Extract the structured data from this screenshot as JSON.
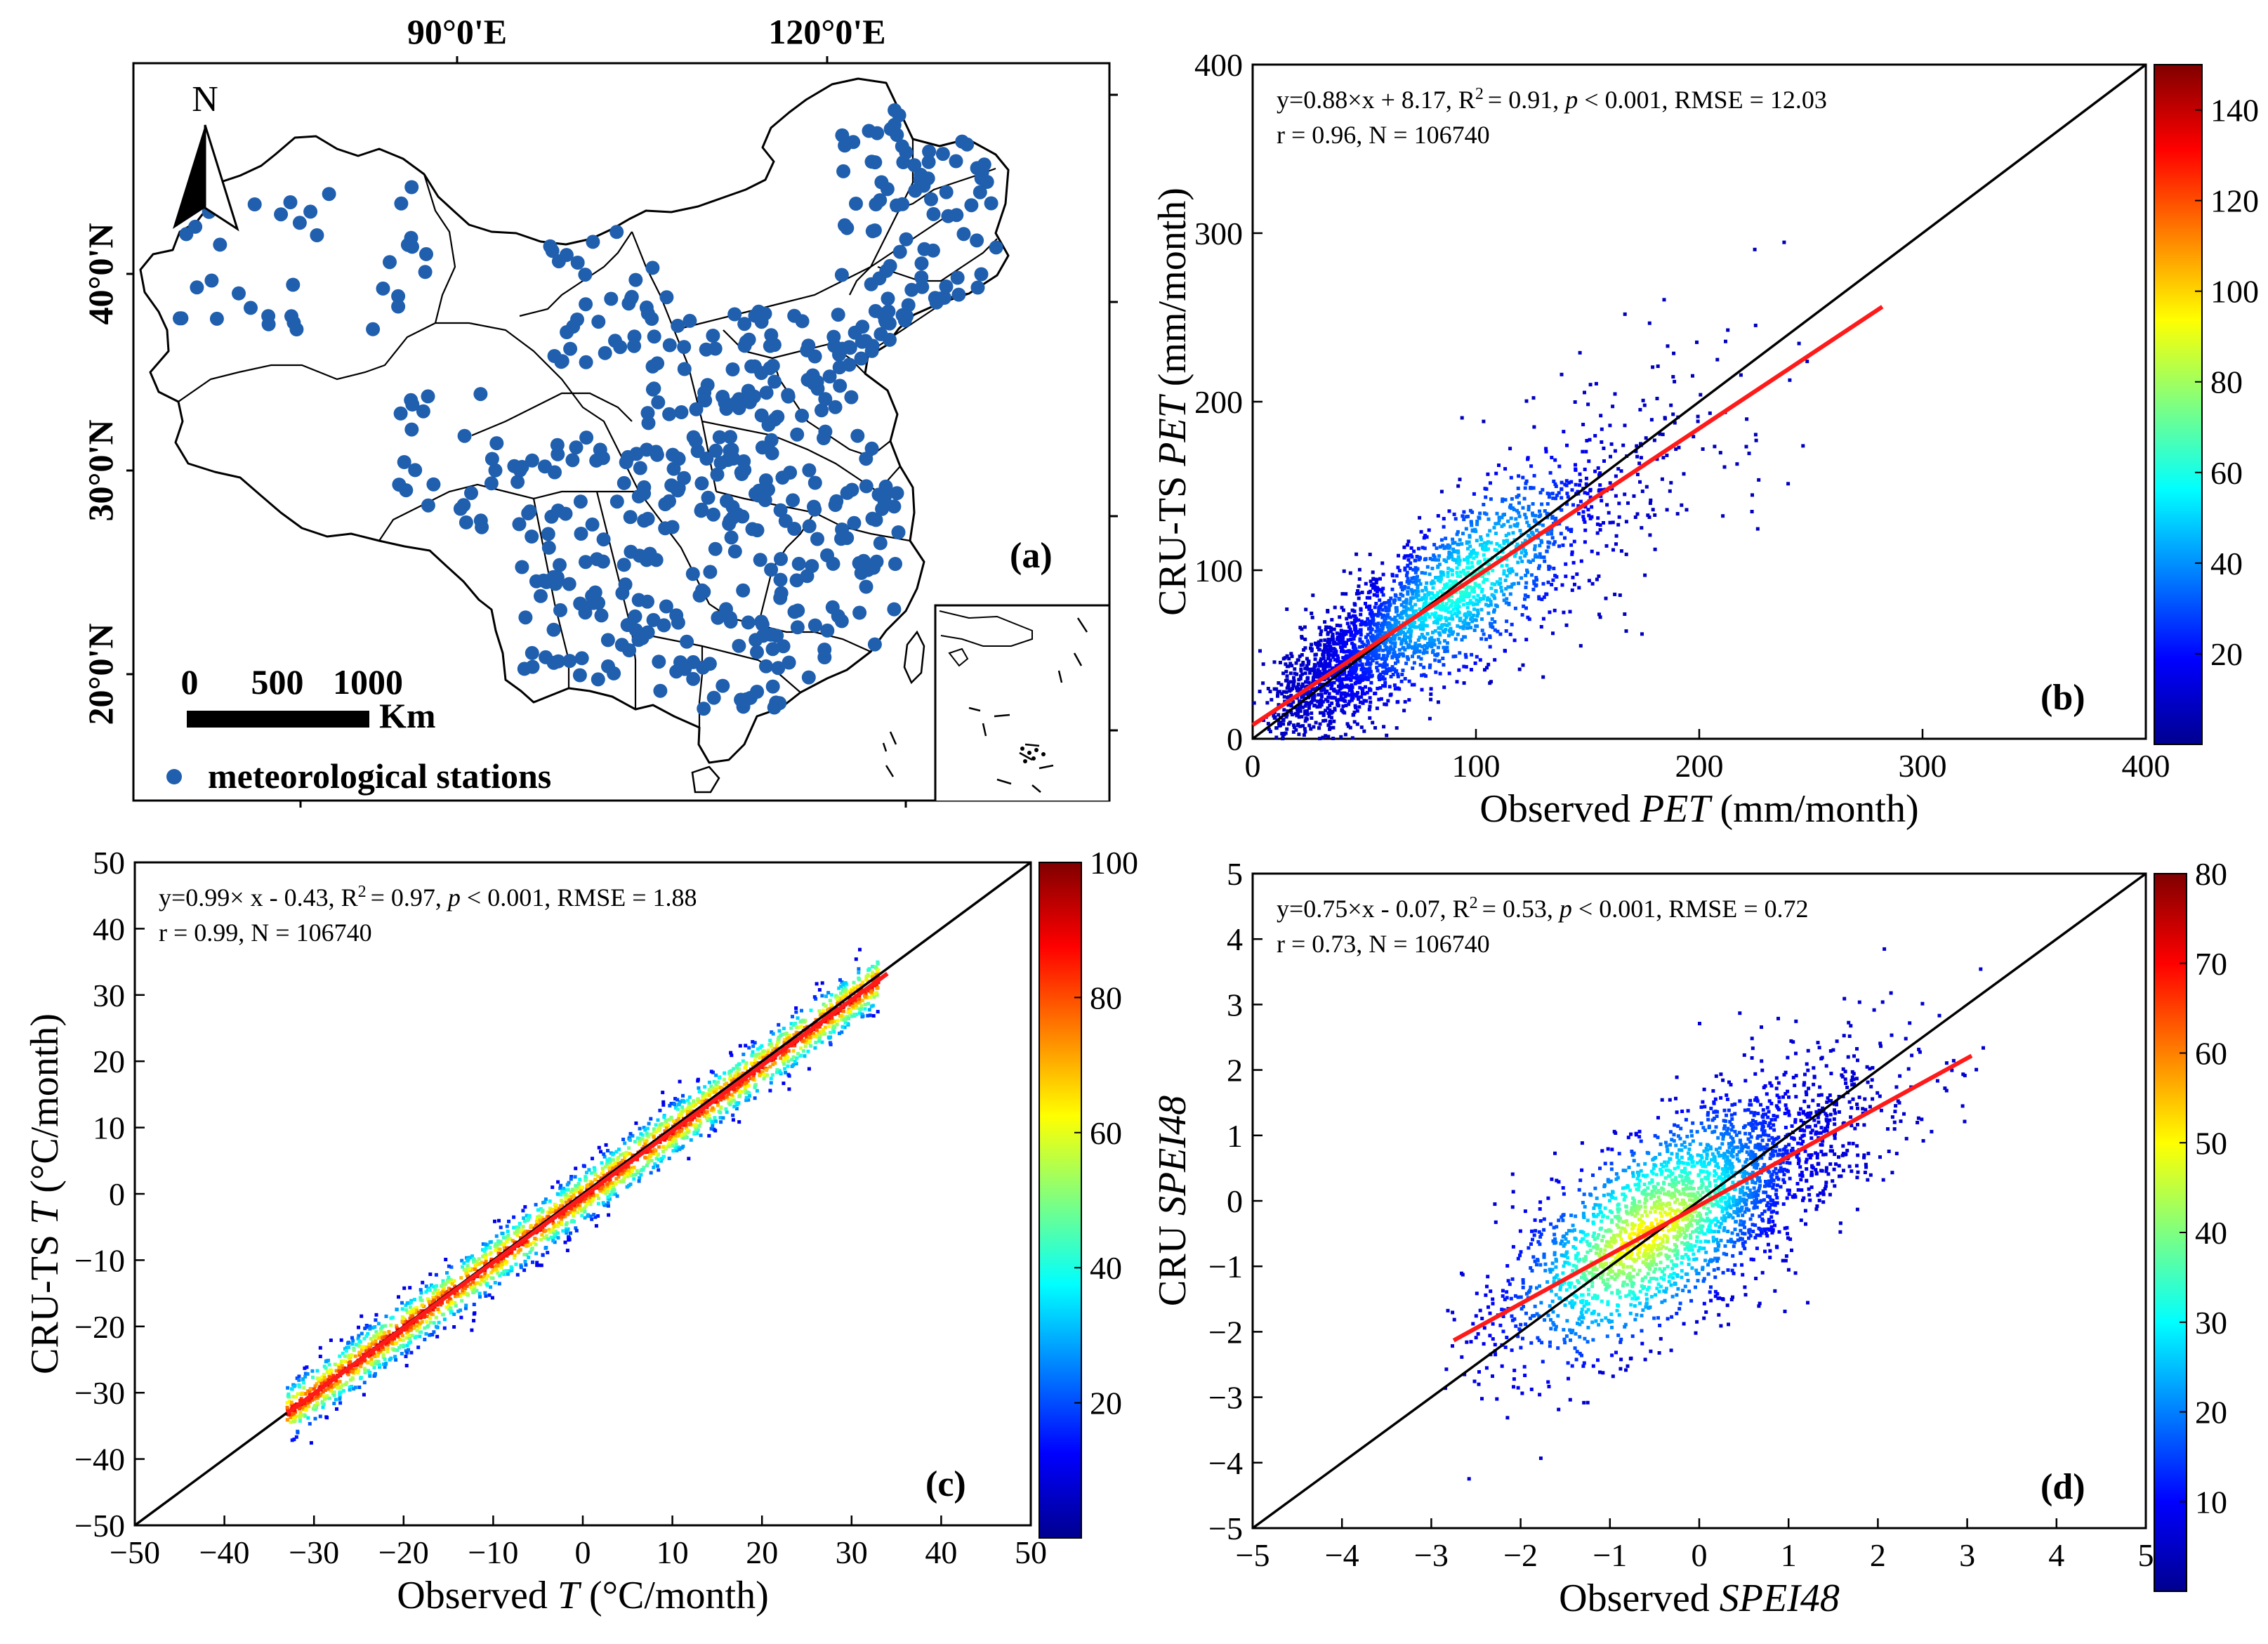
{
  "figure": {
    "panel_a": {
      "label": "(a)",
      "lon_ticks": [
        "90°0'E",
        "120°0'E"
      ],
      "lat_ticks": [
        "40°0'N",
        "30°0'N",
        "20°0'N"
      ],
      "north_label": "N",
      "scale_values": [
        "0",
        "500",
        "1000"
      ],
      "scale_unit": "Km",
      "legend_label": "meteorological stations",
      "station_color": "#1f5fae"
    },
    "colors": {
      "fit_line": "#ff1a1a",
      "one_to_one": "#000000"
    }
  },
  "chart_data": [
    {
      "panel": "b",
      "type": "scatter",
      "label": "(b)",
      "xlabel_prefix": "Observed",
      "xlabel_var": "PET",
      "xlabel_unit": "(mm/month)",
      "ylabel_prefix": "CRU-TS",
      "ylabel_var": "PET",
      "ylabel_unit": "(mm/month)",
      "xlim": [
        0,
        400
      ],
      "ylim": [
        0,
        400
      ],
      "xticks": [
        "0",
        "100",
        "200",
        "300",
        "400"
      ],
      "yticks": [
        "0",
        "100",
        "200",
        "300",
        "400"
      ],
      "colorbar": {
        "min": 0,
        "max": 150,
        "ticks": [
          "20",
          "40",
          "60",
          "80",
          "100",
          "120",
          "140"
        ]
      },
      "regression": {
        "slope": 0.88,
        "intercept": 8.17,
        "x_range": [
          0,
          282
        ]
      },
      "annotation_line1_a": "y=0.88×x + 8.17, R",
      "annotation_line1_b": "= 0.91, ",
      "annotation_line1_c": " < 0.001, RMSE = 12.03",
      "annotation_line2": "r = 0.96, N = 106740",
      "cloud": {
        "spread": 14,
        "slope": 0.88,
        "intercept": 8.17,
        "x_max": 282
      }
    },
    {
      "panel": "c",
      "type": "scatter",
      "label": "(c)",
      "xlabel_prefix": "Observed",
      "xlabel_var": "T",
      "xlabel_unit": "(°C/month)",
      "ylabel_prefix": "CRU-TS",
      "ylabel_var": "T",
      "ylabel_unit": "(°C/month)",
      "xlim": [
        -50,
        50
      ],
      "ylim": [
        -50,
        50
      ],
      "xticks": [
        "−50",
        "−40",
        "−30",
        "−20",
        "−10",
        "0",
        "10",
        "20",
        "30",
        "40",
        "50"
      ],
      "yticks": [
        "−50",
        "−40",
        "−30",
        "−20",
        "−10",
        "0",
        "10",
        "20",
        "30",
        "40",
        "50"
      ],
      "colorbar": {
        "min": 0,
        "max": 100,
        "ticks": [
          "20",
          "40",
          "60",
          "80",
          "100"
        ]
      },
      "regression": {
        "slope": 0.99,
        "intercept": -0.43,
        "x_range": [
          -33,
          34
        ]
      },
      "annotation_line1_a": "y=0.99× x - 0.43, R",
      "annotation_line1_b": "= 0.97, ",
      "annotation_line1_c": " < 0.001, RMSE = 1.88",
      "annotation_line2": "r = 0.99, N = 106740",
      "cloud": {
        "spread": 2.2,
        "slope": 0.99,
        "intercept": -0.43,
        "x_min": -33,
        "x_max": 33
      }
    },
    {
      "panel": "d",
      "type": "scatter",
      "label": "(d)",
      "xlabel_prefix": "Observed",
      "xlabel_var": "SPEI48",
      "xlabel_unit": "",
      "ylabel_prefix": "CRU",
      "ylabel_var": "SPEI48",
      "ylabel_unit": "",
      "xlim": [
        -5,
        5
      ],
      "ylim": [
        -5,
        5
      ],
      "xticks": [
        "−5",
        "−4",
        "−3",
        "−2",
        "−1",
        "0",
        "1",
        "2",
        "3",
        "4",
        "5"
      ],
      "yticks": [
        "−5",
        "−4",
        "−3",
        "−2",
        "−1",
        "0",
        "1",
        "2",
        "3",
        "4",
        "5"
      ],
      "colorbar": {
        "min": 0,
        "max": 80,
        "ticks": [
          "10",
          "20",
          "30",
          "40",
          "50",
          "60",
          "70",
          "80"
        ]
      },
      "regression": {
        "slope": 0.75,
        "intercept": -0.07,
        "x_range": [
          -2.75,
          3.05
        ]
      },
      "annotation_line1_a": "y=0.75×x  - 0.07, R",
      "annotation_line1_b": "= 0.53, ",
      "annotation_line1_c": " < 0.001, RMSE = 0.72",
      "annotation_line2": "r = 0.73, N = 106740",
      "cloud": {
        "spread": 0.72,
        "slope": 0.75,
        "intercept": -0.07,
        "x_min": -2.9,
        "x_max": 3.2
      }
    }
  ]
}
